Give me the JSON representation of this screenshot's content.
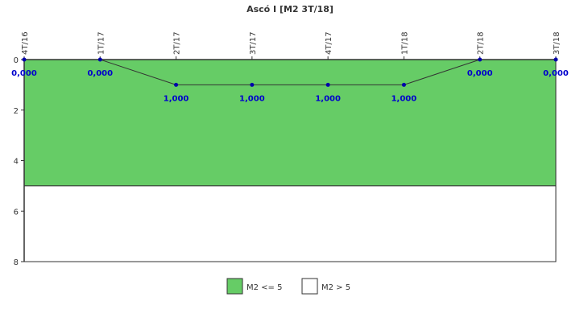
{
  "chart_data": {
    "type": "line",
    "title": "Ascó I [M2 3T/18]",
    "categories": [
      "4T/16",
      "1T/17",
      "2T/17",
      "3T/17",
      "4T/17",
      "1T/18",
      "2T/18",
      "3T/18"
    ],
    "series": [
      {
        "values": [
          0,
          0,
          1,
          1,
          1,
          1,
          0,
          0
        ],
        "labels": [
          "0,000",
          "0,000",
          "1,000",
          "1,000",
          "1,000",
          "1,000",
          "0,000",
          "0,000"
        ],
        "color": "#333333",
        "marker_color": "#0000aa"
      }
    ],
    "ylim": [
      0,
      8
    ],
    "y_inverted": true,
    "yticks": [
      0,
      2,
      4,
      6,
      8
    ],
    "bands": [
      {
        "name": "M2 <= 5",
        "from": 0,
        "to": 5,
        "color": "#66cc66"
      },
      {
        "name": "M2 > 5",
        "from": 5,
        "to": 8,
        "color": "#ffffff"
      }
    ],
    "legend_position": "bottom-center",
    "grid": false
  }
}
